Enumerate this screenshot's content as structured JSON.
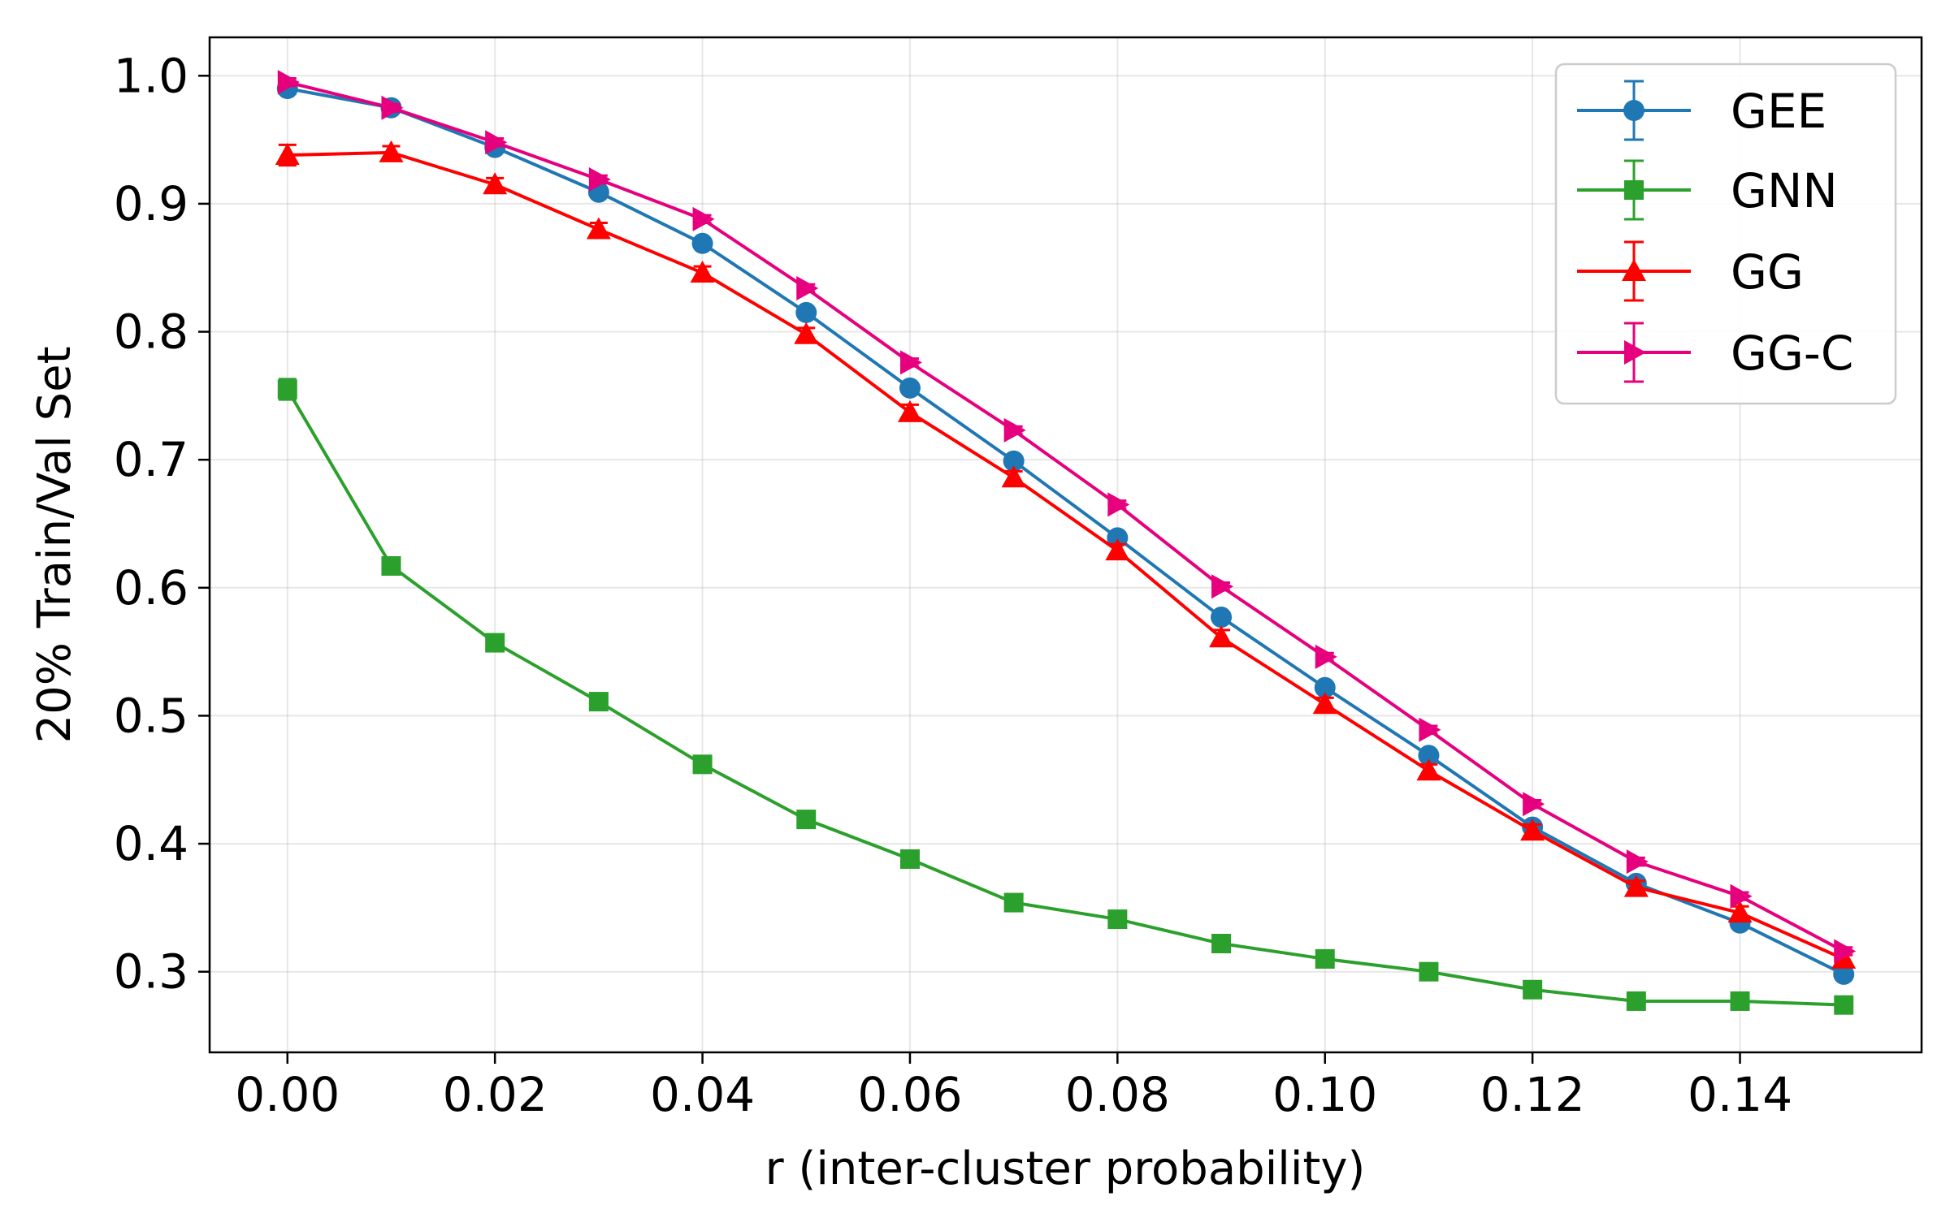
{
  "chart_data": {
    "type": "line",
    "title": "",
    "xlabel": "r (inter-cluster probability)",
    "ylabel": "20% Train/Val Set",
    "x": [
      0.0,
      0.01,
      0.02,
      0.03,
      0.04,
      0.05,
      0.06,
      0.07,
      0.08,
      0.09,
      0.1,
      0.11,
      0.12,
      0.13,
      0.14,
      0.15
    ],
    "xlim": [
      -0.0075,
      0.1575
    ],
    "ylim": [
      0.237,
      1.03
    ],
    "xticks": [
      0.0,
      0.02,
      0.04,
      0.06,
      0.08,
      0.1,
      0.12,
      0.14
    ],
    "xtick_labels": [
      "0.00",
      "0.02",
      "0.04",
      "0.06",
      "0.08",
      "0.10",
      "0.12",
      "0.14"
    ],
    "yticks": [
      0.3,
      0.4,
      0.5,
      0.6,
      0.7,
      0.8,
      0.9,
      1.0
    ],
    "ytick_labels": [
      "0.3",
      "0.4",
      "0.5",
      "0.6",
      "0.7",
      "0.8",
      "0.9",
      "1.0"
    ],
    "grid": true,
    "legend_position": "top-right",
    "series": [
      {
        "name": "GEE",
        "color": "#1f77b4",
        "marker": "circle",
        "values": [
          0.99,
          0.975,
          0.944,
          0.909,
          0.869,
          0.815,
          0.756,
          0.699,
          0.639,
          0.577,
          0.522,
          0.469,
          0.413,
          0.369,
          0.338,
          0.298
        ],
        "errors": [
          0.004,
          0.003,
          0.003,
          0.003,
          0.003,
          0.003,
          0.003,
          0.003,
          0.003,
          0.003,
          0.003,
          0.003,
          0.003,
          0.003,
          0.003,
          0.003
        ]
      },
      {
        "name": "GNN",
        "color": "#2ca02c",
        "marker": "square",
        "values": [
          0.755,
          0.617,
          0.557,
          0.511,
          0.462,
          0.419,
          0.388,
          0.354,
          0.341,
          0.322,
          0.31,
          0.3,
          0.286,
          0.277,
          0.277,
          0.274
        ],
        "errors": [
          0.008,
          0.005,
          0.005,
          0.004,
          0.004,
          0.004,
          0.004,
          0.004,
          0.004,
          0.004,
          0.004,
          0.004,
          0.004,
          0.004,
          0.004,
          0.004
        ]
      },
      {
        "name": "GG",
        "color": "#ff0000",
        "marker": "triangle-up",
        "values": [
          0.938,
          0.94,
          0.915,
          0.88,
          0.846,
          0.798,
          0.737,
          0.686,
          0.629,
          0.561,
          0.509,
          0.457,
          0.41,
          0.366,
          0.346,
          0.31
        ],
        "errors": [
          0.008,
          0.005,
          0.005,
          0.005,
          0.005,
          0.005,
          0.006,
          0.005,
          0.005,
          0.006,
          0.005,
          0.005,
          0.005,
          0.005,
          0.005,
          0.005
        ]
      },
      {
        "name": "GG-C",
        "color": "#e6007e",
        "marker": "triangle-right",
        "values": [
          0.995,
          0.975,
          0.948,
          0.919,
          0.888,
          0.834,
          0.776,
          0.723,
          0.665,
          0.601,
          0.546,
          0.489,
          0.431,
          0.386,
          0.359,
          0.316
        ],
        "errors": [
          0.003,
          0.003,
          0.003,
          0.003,
          0.003,
          0.003,
          0.003,
          0.003,
          0.003,
          0.003,
          0.003,
          0.003,
          0.003,
          0.003,
          0.003,
          0.003
        ]
      }
    ]
  }
}
